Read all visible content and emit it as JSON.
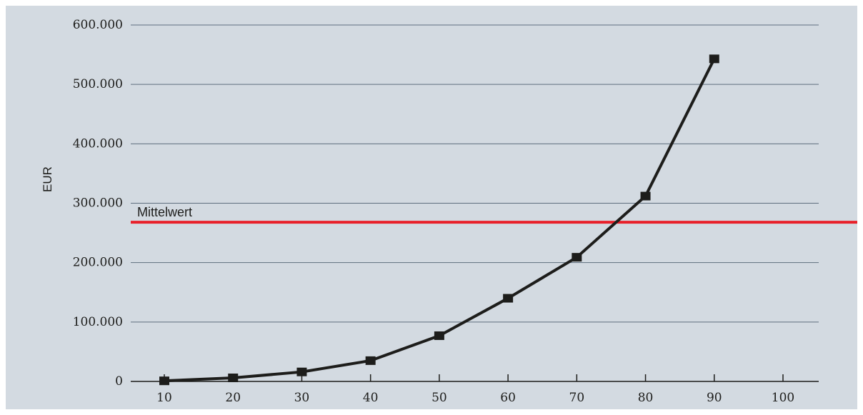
{
  "chart_data": {
    "type": "line",
    "ylabel": "EUR",
    "x": [
      10,
      20,
      30,
      40,
      50,
      60,
      70,
      80,
      90
    ],
    "series": [
      {
        "values": [
          1000,
          6000,
          16000,
          35000,
          77000,
          140000,
          209000,
          312000,
          543000
        ]
      }
    ],
    "x_ticks": [
      "10",
      "20",
      "30",
      "40",
      "50",
      "60",
      "70",
      "80",
      "90",
      "100"
    ],
    "y_ticks": [
      "0",
      "100.000",
      "200.000",
      "300.000",
      "400.000",
      "500.000",
      "600.000"
    ],
    "xlim": [
      10,
      100
    ],
    "ylim": [
      0,
      600000
    ],
    "grid": "horizontal",
    "reference_line": {
      "label": "Mittelwert",
      "value": 268000
    },
    "colors": {
      "background": "#d3dae1",
      "series": "#1d1d1b",
      "reference": "#e8202a",
      "grid": "#5e6e7e"
    }
  }
}
